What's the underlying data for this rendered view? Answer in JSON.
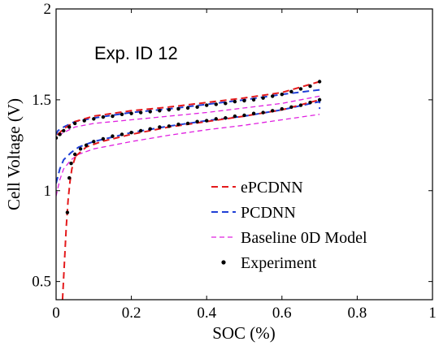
{
  "chart_data": {
    "type": "line",
    "title": "",
    "annotation": "Exp. ID 12",
    "xlabel": "SOC (%)",
    "ylabel": "Cell Voltage (V)",
    "xlim": [
      0,
      1
    ],
    "ylim": [
      0.4,
      2
    ],
    "xticks": [
      0,
      0.2,
      0.4,
      0.6,
      0.8,
      1
    ],
    "xtick_labels": [
      "0",
      "0.2",
      "0.4",
      "0.6",
      "0.8",
      "1"
    ],
    "yticks": [
      0.5,
      1,
      1.5,
      2
    ],
    "ytick_labels": [
      "0.5",
      "1",
      "1.5",
      "2"
    ],
    "grid": false,
    "legend_position": "bottom-right",
    "series": [
      {
        "name": "ePCDNN",
        "color": "#e41a1c",
        "style": "dashed",
        "segments": [
          {
            "x": [
              0.017,
              0.022,
              0.027,
              0.032,
              0.037,
              0.042,
              0.047,
              0.052
            ],
            "y": [
              0.4,
              0.6,
              0.8,
              0.95,
              1.05,
              1.12,
              1.16,
              1.19
            ]
          },
          {
            "x": [
              0.052,
              0.08,
              0.12,
              0.2,
              0.3,
              0.4,
              0.5,
              0.6,
              0.7
            ],
            "y": [
              1.19,
              1.24,
              1.27,
              1.31,
              1.35,
              1.38,
              1.41,
              1.445,
              1.5
            ]
          },
          {
            "x": [
              0.7,
              0.6,
              0.5,
              0.4,
              0.3,
              0.2,
              0.1,
              0.05,
              0.02,
              0.005,
              0.0
            ],
            "y": [
              1.6,
              1.54,
              1.51,
              1.485,
              1.46,
              1.44,
              1.41,
              1.38,
              1.34,
              1.31,
              1.29
            ]
          }
        ]
      },
      {
        "name": "PCDNN",
        "color": "#1f3fd6",
        "style": "dashed",
        "segments": [
          {
            "x": [
              0.0,
              0.01,
              0.02,
              0.04,
              0.06,
              0.1,
              0.2,
              0.3,
              0.4,
              0.5,
              0.6,
              0.7,
              0.7
            ],
            "y": [
              1.04,
              1.12,
              1.17,
              1.21,
              1.24,
              1.27,
              1.32,
              1.355,
              1.385,
              1.41,
              1.445,
              1.49,
              1.45
            ]
          },
          {
            "x": [
              0.7,
              0.6,
              0.5,
              0.4,
              0.3,
              0.2,
              0.1,
              0.05,
              0.02,
              0.005,
              0.0
            ],
            "y": [
              1.555,
              1.53,
              1.5,
              1.475,
              1.45,
              1.43,
              1.4,
              1.38,
              1.35,
              1.33,
              1.31
            ]
          }
        ]
      },
      {
        "name": "Baseline 0D Model",
        "color": "#e020e0",
        "style": "dashed",
        "segments": [
          {
            "x": [
              0.0,
              0.01,
              0.02,
              0.04,
              0.06,
              0.1,
              0.2,
              0.3,
              0.4,
              0.5,
              0.6,
              0.7
            ],
            "y": [
              0.97,
              1.06,
              1.12,
              1.17,
              1.2,
              1.23,
              1.27,
              1.305,
              1.335,
              1.36,
              1.39,
              1.42
            ]
          },
          {
            "x": [
              0.7,
              0.6,
              0.5,
              0.4,
              0.3,
              0.2,
              0.1,
              0.05,
              0.02,
              0.005,
              0.0
            ],
            "y": [
              1.52,
              1.48,
              1.455,
              1.43,
              1.41,
              1.39,
              1.37,
              1.35,
              1.32,
              1.3,
              1.29
            ]
          }
        ]
      },
      {
        "name": "Experiment",
        "color": "#000000",
        "style": "points",
        "segments": [
          {
            "x": [
              0.03,
              0.035,
              0.04,
              0.05,
              0.065,
              0.08,
              0.1,
              0.125,
              0.15,
              0.175,
              0.2,
              0.225,
              0.25,
              0.275,
              0.3,
              0.325,
              0.35,
              0.375,
              0.4,
              0.425,
              0.45,
              0.475,
              0.5,
              0.525,
              0.55,
              0.575,
              0.6,
              0.625,
              0.65,
              0.675,
              0.7
            ],
            "y": [
              0.88,
              1.07,
              1.15,
              1.2,
              1.23,
              1.25,
              1.27,
              1.285,
              1.3,
              1.31,
              1.32,
              1.33,
              1.34,
              1.35,
              1.355,
              1.365,
              1.37,
              1.38,
              1.385,
              1.395,
              1.4,
              1.41,
              1.415,
              1.425,
              1.43,
              1.44,
              1.45,
              1.46,
              1.47,
              1.485,
              1.5
            ]
          },
          {
            "x": [
              0.0,
              0.01,
              0.02,
              0.035,
              0.05,
              0.075,
              0.1,
              0.125,
              0.15,
              0.175,
              0.2,
              0.225,
              0.25,
              0.275,
              0.3,
              0.325,
              0.35,
              0.375,
              0.4,
              0.425,
              0.45,
              0.475,
              0.5,
              0.525,
              0.55,
              0.575,
              0.6,
              0.625,
              0.65,
              0.675,
              0.7
            ],
            "y": [
              1.29,
              1.31,
              1.33,
              1.35,
              1.37,
              1.385,
              1.395,
              1.405,
              1.41,
              1.42,
              1.425,
              1.43,
              1.435,
              1.44,
              1.445,
              1.45,
              1.455,
              1.46,
              1.47,
              1.475,
              1.48,
              1.49,
              1.495,
              1.5,
              1.51,
              1.52,
              1.53,
              1.545,
              1.56,
              1.575,
              1.6
            ]
          }
        ]
      }
    ]
  }
}
